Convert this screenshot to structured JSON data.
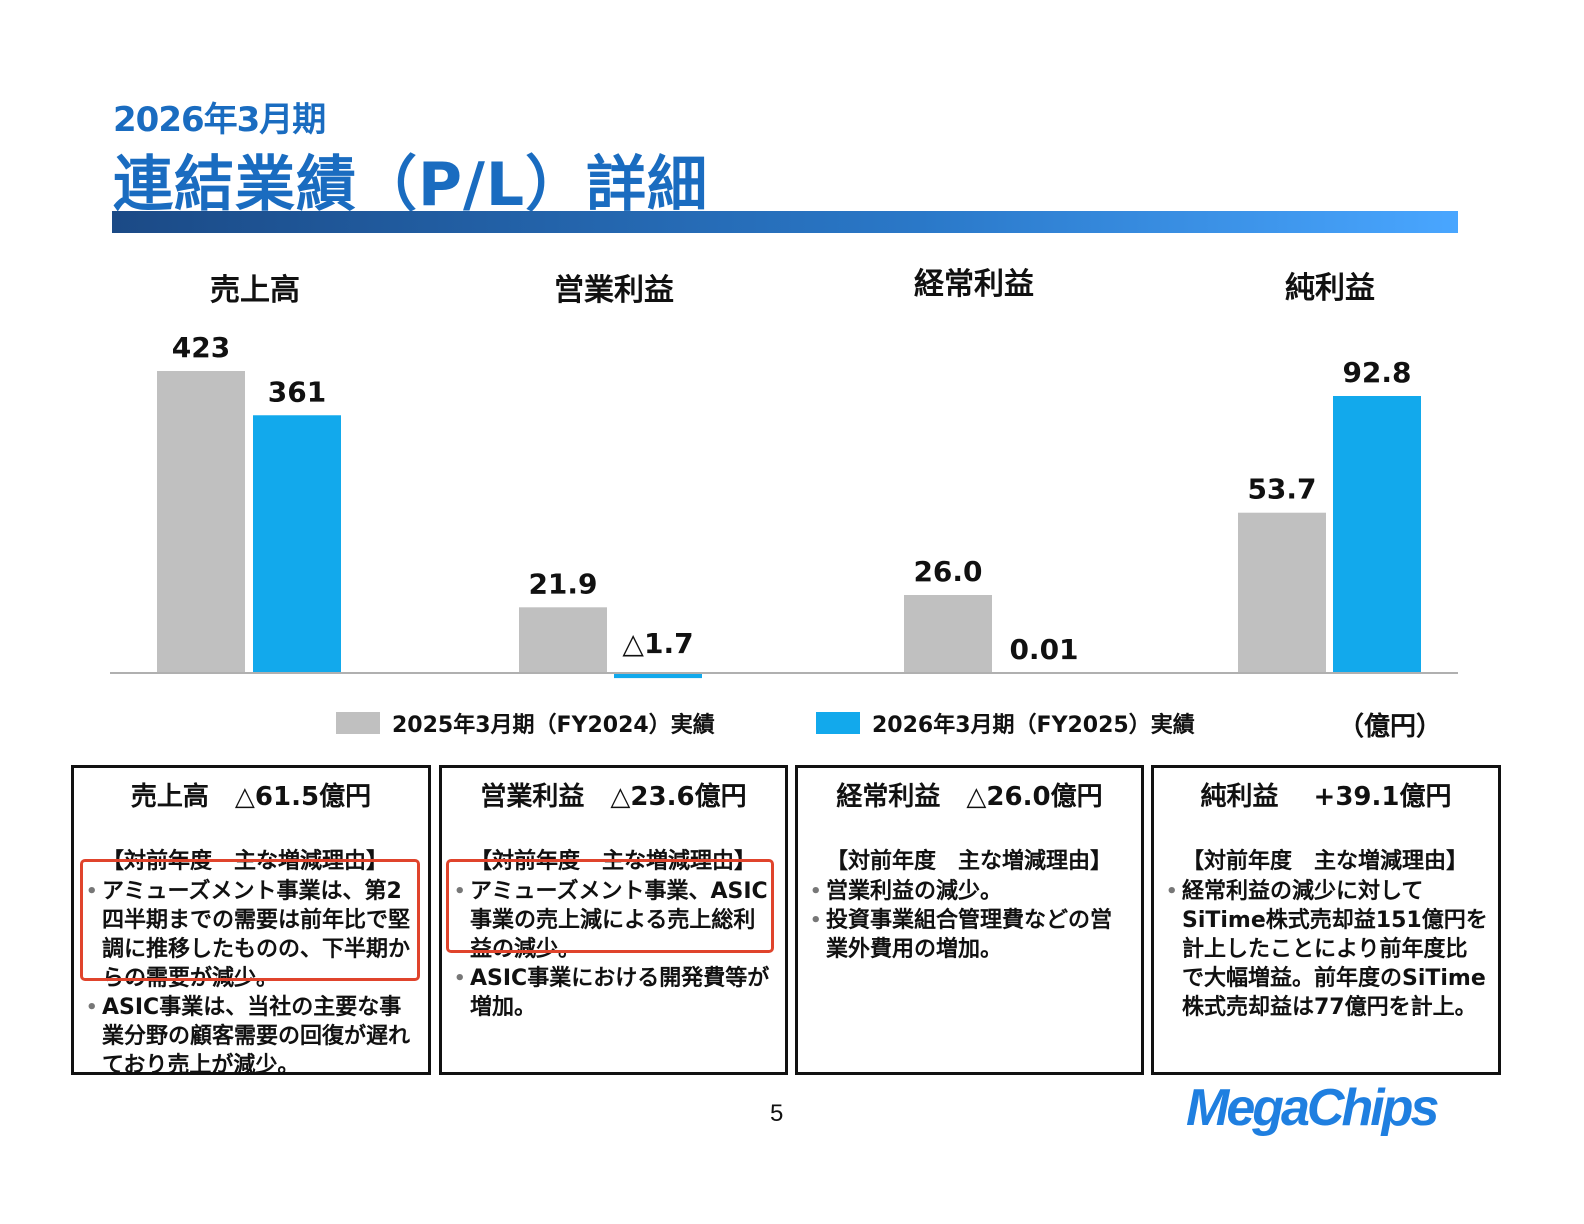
{
  "header": {
    "subtitle": "2026年3月期",
    "title": "連結業績（P/L）詳細"
  },
  "chart_data": {
    "type": "bar",
    "categories": [
      "売上高",
      "営業利益",
      "経常利益",
      "純利益"
    ],
    "series": [
      {
        "name": "2025年3月期（FY2024）実績",
        "color": "#c0c0c0",
        "values": [
          423,
          21.9,
          26.0,
          53.7
        ],
        "labels": [
          "423",
          "21.9",
          "26.0",
          "53.7"
        ]
      },
      {
        "name": "2026年3月期（FY2025）実績",
        "color": "#12a9ec",
        "values": [
          361,
          -1.7,
          0.01,
          92.8
        ],
        "labels": [
          "361",
          "△1.7",
          "0.01",
          "92.8"
        ]
      }
    ],
    "unit": "（億円）"
  },
  "boxes": [
    {
      "title": "売上高　△61.5億円",
      "heading": "【対前年度　主な増減理由】",
      "bullets": [
        "アミューズメント事業は、第2四半期までの需要は前年比で堅調に推移したものの、下半期からの需要が減少。",
        "ASIC事業は、当社の主要な事業分野の顧客需要の回復が遅れており売上が減少。"
      ]
    },
    {
      "title": "営業利益　△23.6億円",
      "heading": "【対前年度　主な増減理由】",
      "bullets": [
        "アミューズメント事業、ASIC事業の売上減による売上総利益の減少。",
        "ASIC事業における開発費等が増加。"
      ]
    },
    {
      "title": "経常利益　△26.0億円",
      "heading": "【対前年度　主な増減理由】",
      "bullets": [
        "営業利益の減少。",
        "投資事業組合管理費などの営業外費用の増加。"
      ]
    },
    {
      "title": "純利益　 +39.1億円",
      "heading": "【対前年度　主な増減理由】",
      "bullets": [
        "経常利益の減少に対してSiTime株式売却益151億円を計上したことにより前年度比で大幅増益。前年度のSiTime株式売却益は77億円を計上。"
      ]
    }
  ],
  "footer": {
    "page_number": "5",
    "logo": "MegaChips"
  },
  "colors": {
    "accent": "#1a6cc0",
    "highlight": "#e0442c"
  }
}
